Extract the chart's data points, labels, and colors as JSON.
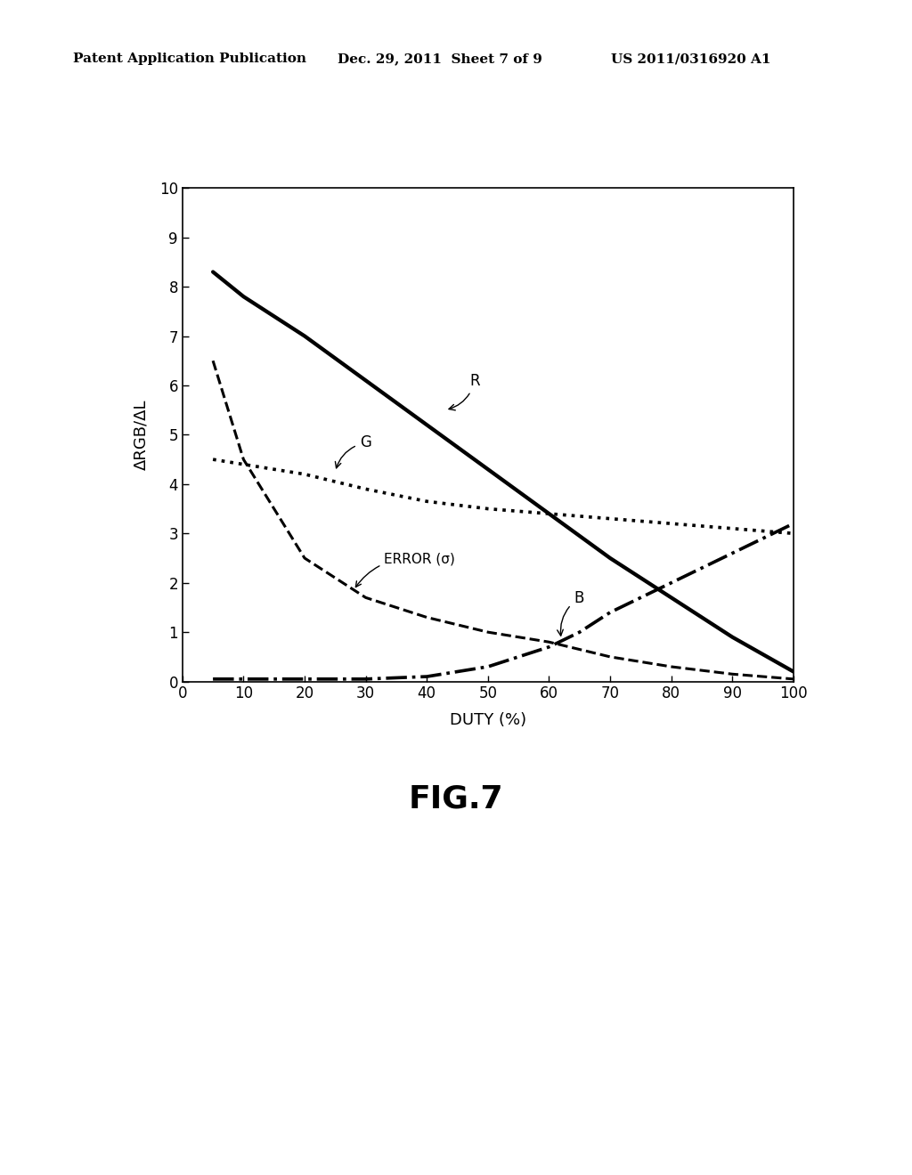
{
  "title": "FIG.7",
  "xlabel": "DUTY (%)",
  "ylabel": "ΔRGB/ΔL",
  "xlim": [
    0,
    100
  ],
  "ylim": [
    0,
    10
  ],
  "xticks": [
    0,
    10,
    20,
    30,
    40,
    50,
    60,
    70,
    80,
    90,
    100
  ],
  "yticks": [
    0,
    1,
    2,
    3,
    4,
    5,
    6,
    7,
    8,
    9,
    10
  ],
  "header_left": "Patent Application Publication",
  "header_center": "Dec. 29, 2011  Sheet 7 of 9",
  "header_right": "US 2011/0316920 A1",
  "R_x": [
    5,
    10,
    20,
    30,
    40,
    50,
    60,
    70,
    80,
    90,
    100
  ],
  "R_y": [
    8.3,
    7.8,
    7.0,
    6.1,
    5.2,
    4.3,
    3.4,
    2.5,
    1.7,
    0.9,
    0.2
  ],
  "G_x": [
    5,
    10,
    20,
    30,
    40,
    50,
    60,
    70,
    80,
    90,
    100
  ],
  "G_y": [
    4.5,
    4.4,
    4.2,
    3.9,
    3.65,
    3.5,
    3.4,
    3.3,
    3.2,
    3.1,
    3.0
  ],
  "B_x": [
    5,
    10,
    20,
    30,
    40,
    50,
    60,
    65,
    70,
    80,
    90,
    100
  ],
  "B_y": [
    0.05,
    0.05,
    0.05,
    0.05,
    0.1,
    0.3,
    0.7,
    1.0,
    1.4,
    2.0,
    2.6,
    3.2
  ],
  "ERROR_x": [
    5,
    10,
    20,
    30,
    40,
    50,
    60,
    70,
    80,
    90,
    100
  ],
  "ERROR_y": [
    6.5,
    4.5,
    2.5,
    1.7,
    1.3,
    1.0,
    0.8,
    0.5,
    0.3,
    0.15,
    0.05
  ],
  "background_color": "#ffffff",
  "line_color": "#000000"
}
